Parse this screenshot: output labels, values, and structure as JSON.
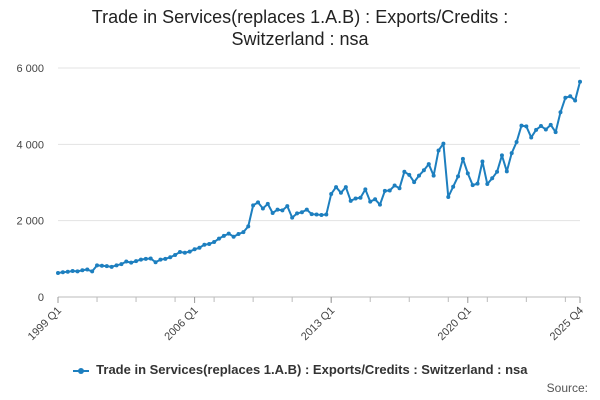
{
  "chart_data": {
    "type": "line",
    "title_line1": "Trade in Services(replaces 1.A.B) : Exports/Credits :",
    "title_line2": "Switzerland : nsa",
    "xlabel": "",
    "ylabel": "",
    "ylim": [
      0,
      6000
    ],
    "yticks": [
      0,
      2000,
      4000,
      6000
    ],
    "ytick_labels": [
      "0",
      "2 000",
      "4 000",
      "6 000"
    ],
    "xtick_labels": [
      "1999 Q1",
      "2006 Q1",
      "2013 Q1",
      "2020 Q1",
      "2025 Q4"
    ],
    "xtick_quarters": [
      "1999 Q1",
      "2006 Q1",
      "2013 Q1",
      "2020 Q1",
      "2025 Q4"
    ],
    "grid": true,
    "legend_position": "bottom",
    "color": "#1d7fbf",
    "series": [
      {
        "name": "Trade in Services(replaces 1.A.B) : Exports/Credits : Switzerland : nsa",
        "start": "1999 Q1",
        "values": [
          630,
          650,
          660,
          680,
          670,
          700,
          720,
          670,
          830,
          820,
          810,
          790,
          830,
          860,
          930,
          900,
          940,
          980,
          1000,
          1010,
          910,
          980,
          1000,
          1040,
          1100,
          1180,
          1160,
          1190,
          1250,
          1290,
          1370,
          1390,
          1440,
          1530,
          1600,
          1660,
          1580,
          1650,
          1700,
          1850,
          2400,
          2480,
          2320,
          2440,
          2200,
          2290,
          2270,
          2380,
          2080,
          2190,
          2220,
          2290,
          2170,
          2160,
          2150,
          2160,
          2700,
          2880,
          2730,
          2880,
          2520,
          2580,
          2600,
          2820,
          2500,
          2560,
          2420,
          2780,
          2790,
          2920,
          2850,
          3280,
          3200,
          3010,
          3180,
          3320,
          3480,
          3180,
          3840,
          4020,
          2620,
          2890,
          3160,
          3620,
          3240,
          2930,
          2970,
          3550,
          2960,
          3110,
          3280,
          3710,
          3290,
          3770,
          4060,
          4490,
          4470,
          4180,
          4380,
          4480,
          4390,
          4510,
          4320,
          4840,
          5220,
          5260,
          5150,
          5640
        ]
      }
    ]
  },
  "source_label": "Source:"
}
